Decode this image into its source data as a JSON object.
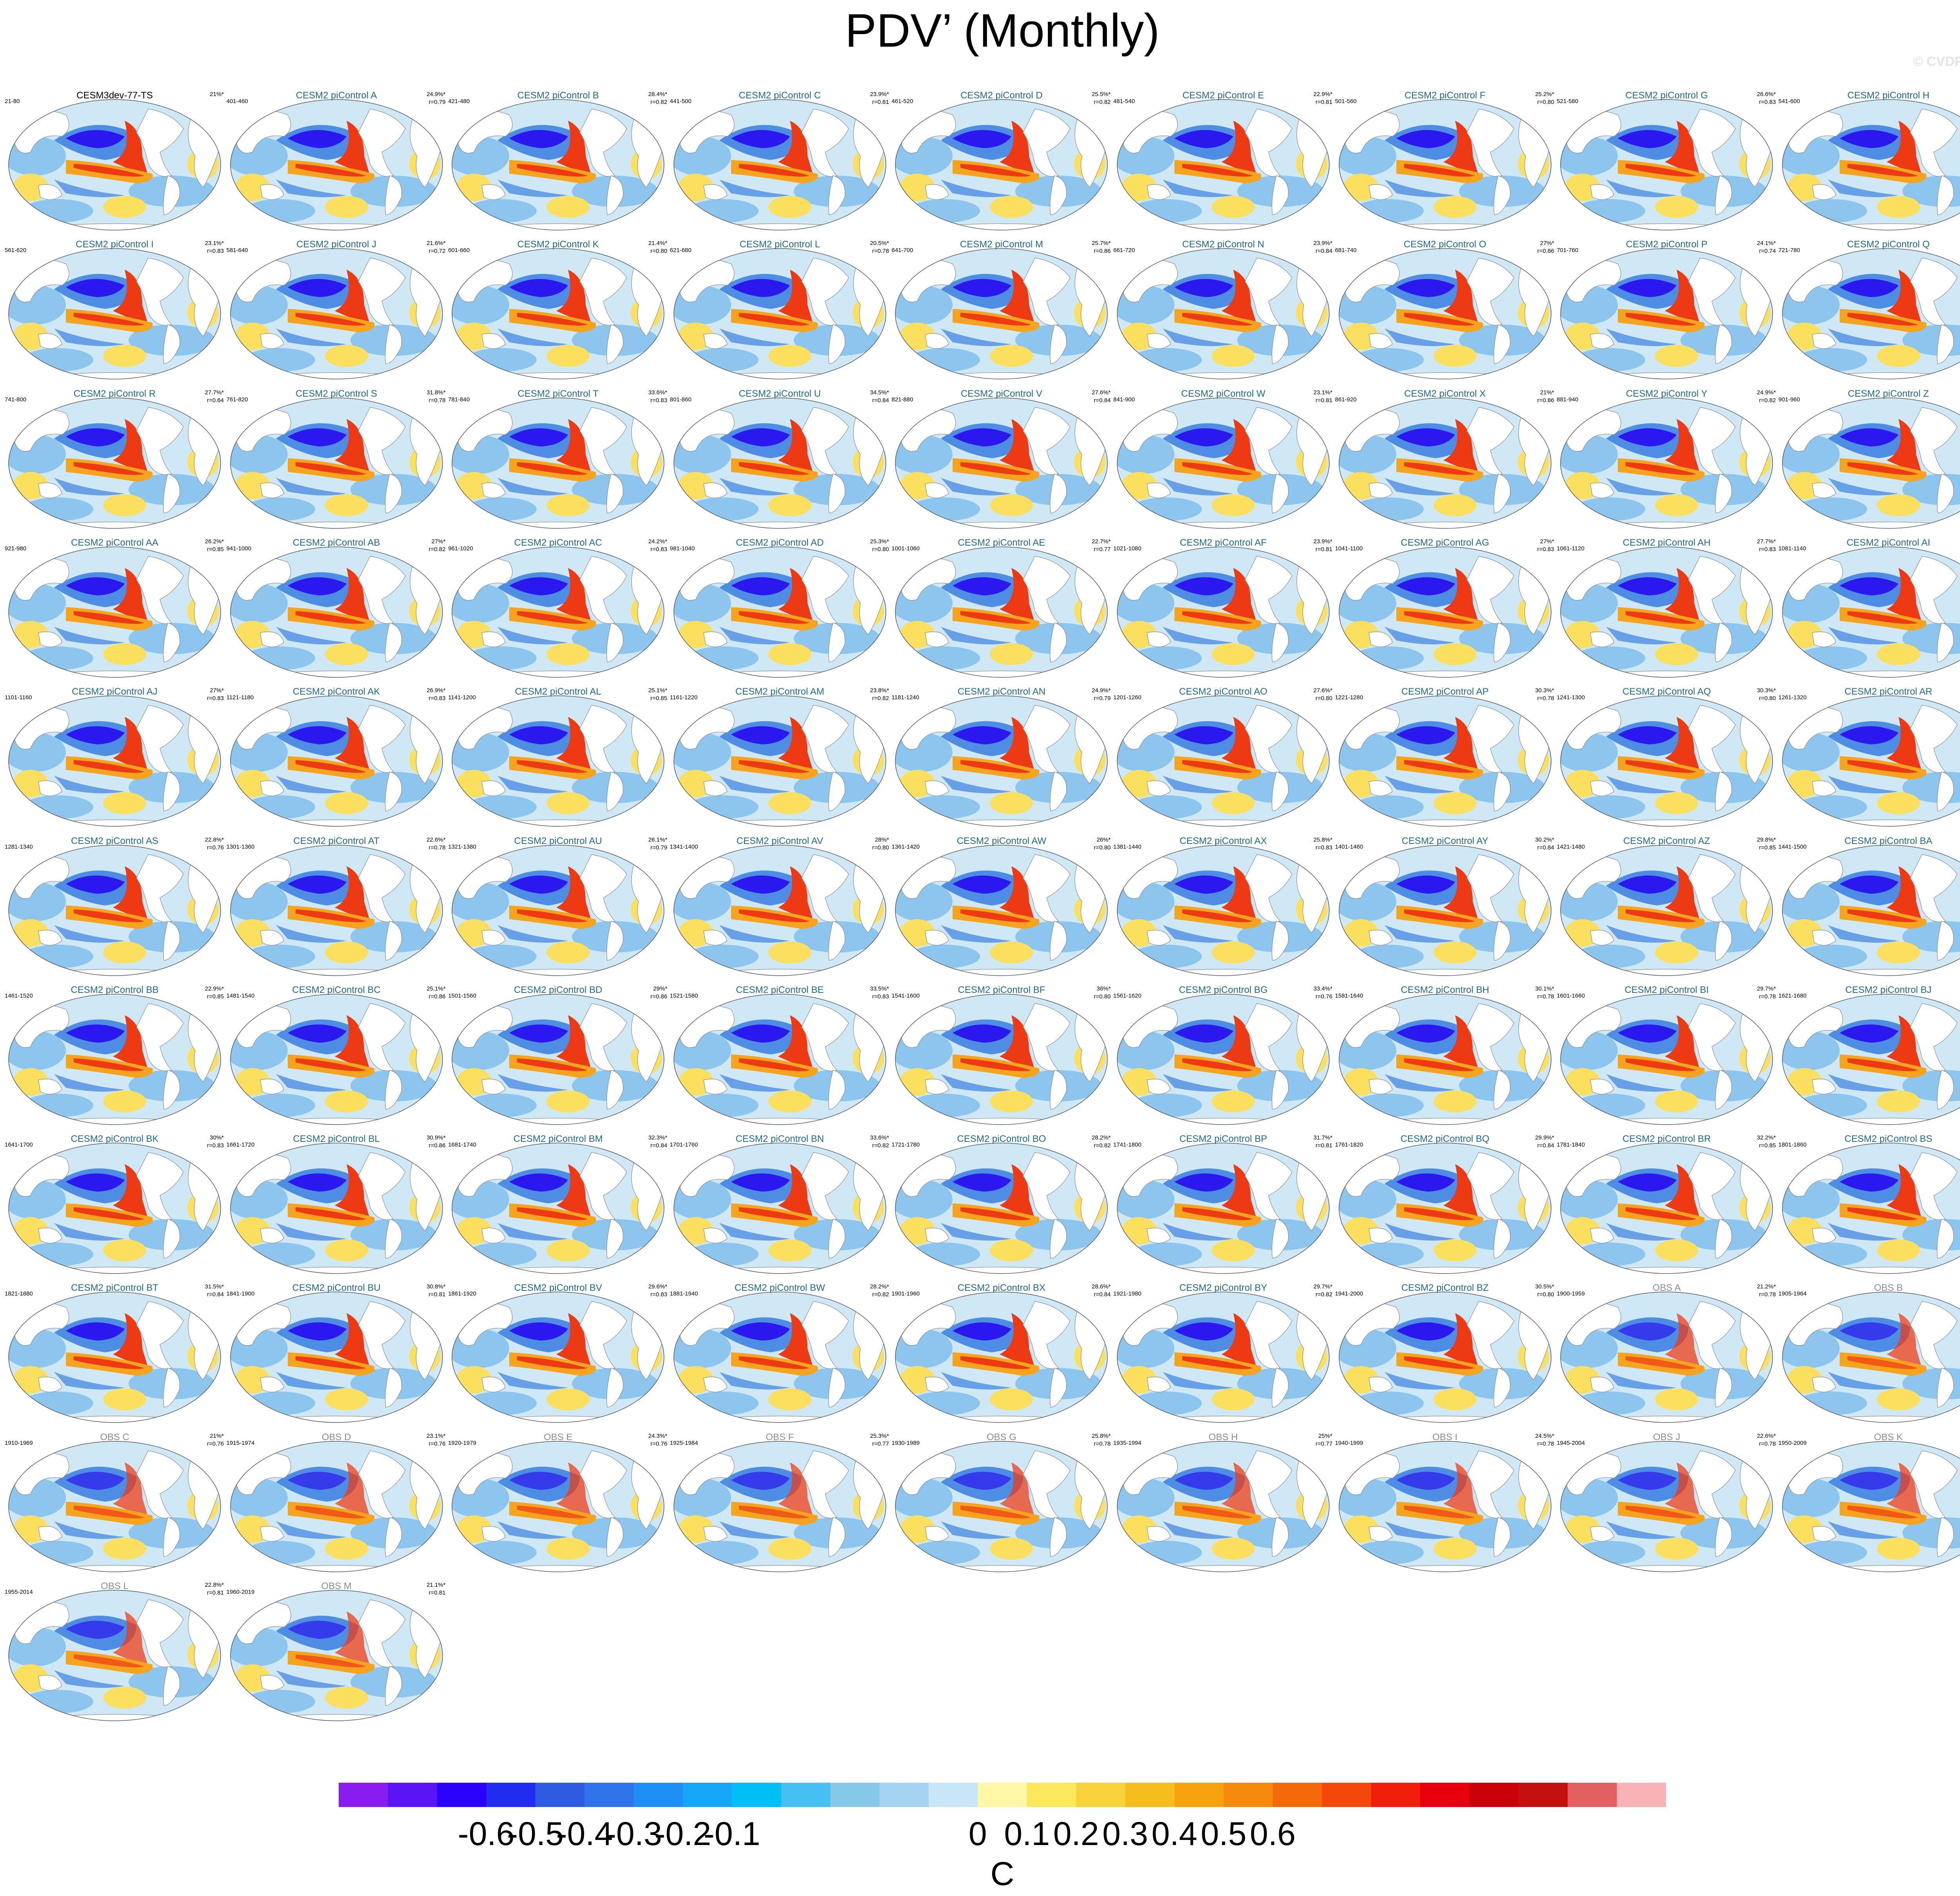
{
  "title": "PDV’ (Monthly)",
  "copyright": "© CVDP-LE",
  "panels": [
    {
      "title": "CESM3dev-77-TS",
      "years": "21-80",
      "pct": "21%*",
      "r": "",
      "kind": "ctl"
    },
    {
      "title": "CESM2 piControl A",
      "years": "401-460",
      "pct": "24.9%*",
      "r": "r=0.79",
      "kind": "mod"
    },
    {
      "title": "CESM2 piControl B",
      "years": "421-480",
      "pct": "28.4%*",
      "r": "r=0.82",
      "kind": "mod"
    },
    {
      "title": "CESM2 piControl C",
      "years": "441-500",
      "pct": "23.9%*",
      "r": "r=0.81",
      "kind": "mod"
    },
    {
      "title": "CESM2 piControl D",
      "years": "461-520",
      "pct": "25.5%*",
      "r": "r=0.82",
      "kind": "mod"
    },
    {
      "title": "CESM2 piControl E",
      "years": "481-540",
      "pct": "22.9%*",
      "r": "r=0.81",
      "kind": "mod"
    },
    {
      "title": "CESM2 piControl F",
      "years": "501-560",
      "pct": "25.2%*",
      "r": "r=0.80",
      "kind": "mod"
    },
    {
      "title": "CESM2 piControl G",
      "years": "521-580",
      "pct": "26.6%*",
      "r": "r=0.83",
      "kind": "mod"
    },
    {
      "title": "CESM2 piControl H",
      "years": "541-600",
      "pct": "23.5%*",
      "r": "r=0.81",
      "kind": "mod"
    },
    {
      "title": "CESM2 piControl I",
      "years": "561-620",
      "pct": "23.1%*",
      "r": "r=0.83",
      "kind": "mod"
    },
    {
      "title": "CESM2 piControl J",
      "years": "581-640",
      "pct": "21.6%*",
      "r": "r=0.72",
      "kind": "mod"
    },
    {
      "title": "CESM2 piControl K",
      "years": "601-660",
      "pct": "21.4%*",
      "r": "r=0.80",
      "kind": "mod"
    },
    {
      "title": "CESM2 piControl L",
      "years": "621-680",
      "pct": "20.5%*",
      "r": "r=0.78",
      "kind": "mod"
    },
    {
      "title": "CESM2 piControl M",
      "years": "641-700",
      "pct": "25.7%*",
      "r": "r=0.86",
      "kind": "mod"
    },
    {
      "title": "CESM2 piControl N",
      "years": "661-720",
      "pct": "23.9%*",
      "r": "r=0.84",
      "kind": "mod"
    },
    {
      "title": "CESM2 piControl O",
      "years": "681-740",
      "pct": "27%*",
      "r": "r=0.86",
      "kind": "mod"
    },
    {
      "title": "CESM2 piControl P",
      "years": "701-760",
      "pct": "24.1%*",
      "r": "r=0.74",
      "kind": "mod"
    },
    {
      "title": "CESM2 piControl Q",
      "years": "721-780",
      "pct": "28.4%*",
      "r": "r=0.71",
      "kind": "mod"
    },
    {
      "title": "CESM2 piControl R",
      "years": "741-800",
      "pct": "27.7%*",
      "r": "r=0.64",
      "kind": "mod"
    },
    {
      "title": "CESM2 piControl S",
      "years": "761-820",
      "pct": "31.8%*",
      "r": "r=0.78",
      "kind": "mod"
    },
    {
      "title": "CESM2 piControl T",
      "years": "781-840",
      "pct": "33.6%*",
      "r": "r=0.83",
      "kind": "mod"
    },
    {
      "title": "CESM2 piControl U",
      "years": "801-860",
      "pct": "34.5%*",
      "r": "r=0.84",
      "kind": "mod"
    },
    {
      "title": "CESM2 piControl V",
      "years": "821-880",
      "pct": "27.6%*",
      "r": "r=0.84",
      "kind": "mod"
    },
    {
      "title": "CESM2 piControl W",
      "years": "841-900",
      "pct": "23.1%*",
      "r": "r=0.81",
      "kind": "mod"
    },
    {
      "title": "CESM2 piControl X",
      "years": "861-920",
      "pct": "21%*",
      "r": "r=0.86",
      "kind": "mod"
    },
    {
      "title": "CESM2 piControl Y",
      "years": "881-940",
      "pct": "24.9%*",
      "r": "r=0.82",
      "kind": "mod"
    },
    {
      "title": "CESM2 piControl Z",
      "years": "901-960",
      "pct": "24.8%*",
      "r": "r=0.85",
      "kind": "mod"
    },
    {
      "title": "CESM2 piControl AA",
      "years": "921-980",
      "pct": "26.2%*",
      "r": "r=0.85",
      "kind": "mod"
    },
    {
      "title": "CESM2 piControl AB",
      "years": "941-1000",
      "pct": "27%*",
      "r": "r=0.82",
      "kind": "mod"
    },
    {
      "title": "CESM2 piControl AC",
      "years": "961-1020",
      "pct": "24.2%*",
      "r": "r=0.83",
      "kind": "mod"
    },
    {
      "title": "CESM2 piControl AD",
      "years": "981-1040",
      "pct": "25.3%*",
      "r": "r=0.80",
      "kind": "mod"
    },
    {
      "title": "CESM2 piControl AE",
      "years": "1001-1060",
      "pct": "22.7%*",
      "r": "r=0.77",
      "kind": "mod"
    },
    {
      "title": "CESM2 piControl AF",
      "years": "1021-1080",
      "pct": "23.9%*",
      "r": "r=0.81",
      "kind": "mod"
    },
    {
      "title": "CESM2 piControl AG",
      "years": "1041-1100",
      "pct": "27%*",
      "r": "r=0.83",
      "kind": "mod"
    },
    {
      "title": "CESM2 piControl AH",
      "years": "1061-1120",
      "pct": "27.7%*",
      "r": "r=0.83",
      "kind": "mod"
    },
    {
      "title": "CESM2 piControl AI",
      "years": "1081-1140",
      "pct": "26.9%*",
      "r": "r=0.79",
      "kind": "mod"
    },
    {
      "title": "CESM2 piControl AJ",
      "years": "1101-1160",
      "pct": "27%*",
      "r": "r=0.83",
      "kind": "mod"
    },
    {
      "title": "CESM2 piControl AK",
      "years": "1121-1180",
      "pct": "26.9%*",
      "r": "r=0.83",
      "kind": "mod"
    },
    {
      "title": "CESM2 piControl AL",
      "years": "1141-1200",
      "pct": "25.1%*",
      "r": "r=0.85",
      "kind": "mod"
    },
    {
      "title": "CESM2 piControl AM",
      "years": "1161-1220",
      "pct": "23.8%*",
      "r": "r=0.82",
      "kind": "mod"
    },
    {
      "title": "CESM2 piControl AN",
      "years": "1181-1240",
      "pct": "24.9%*",
      "r": "r=0.79",
      "kind": "mod"
    },
    {
      "title": "CESM2 piControl AO",
      "years": "1201-1260",
      "pct": "27.6%*",
      "r": "r=0.80",
      "kind": "mod"
    },
    {
      "title": "CESM2 piControl AP",
      "years": "1221-1280",
      "pct": "30.3%*",
      "r": "r=0.78",
      "kind": "mod"
    },
    {
      "title": "CESM2 piControl AQ",
      "years": "1241-1300",
      "pct": "30.3%*",
      "r": "r=0.80",
      "kind": "mod"
    },
    {
      "title": "CESM2 piControl AR",
      "years": "1261-1320",
      "pct": "25%*",
      "r": "r=0.78",
      "kind": "mod"
    },
    {
      "title": "CESM2 piControl AS",
      "years": "1281-1340",
      "pct": "22.8%*",
      "r": "r=0.76",
      "kind": "mod"
    },
    {
      "title": "CESM2 piControl AT",
      "years": "1301-1360",
      "pct": "22.6%*",
      "r": "r=0.78",
      "kind": "mod"
    },
    {
      "title": "CESM2 piControl AU",
      "years": "1321-1380",
      "pct": "26.1%*",
      "r": "r=0.79",
      "kind": "mod"
    },
    {
      "title": "CESM2 piControl AV",
      "years": "1341-1400",
      "pct": "28%*",
      "r": "r=0.80",
      "kind": "mod"
    },
    {
      "title": "CESM2 piControl AW",
      "years": "1361-1420",
      "pct": "26%*",
      "r": "r=0.80",
      "kind": "mod"
    },
    {
      "title": "CESM2 piControl AX",
      "years": "1381-1440",
      "pct": "25.8%*",
      "r": "r=0.83",
      "kind": "mod"
    },
    {
      "title": "CESM2 piControl AY",
      "years": "1401-1460",
      "pct": "30.2%*",
      "r": "r=0.84",
      "kind": "mod"
    },
    {
      "title": "CESM2 piControl AZ",
      "years": "1421-1480",
      "pct": "29.8%*",
      "r": "r=0.85",
      "kind": "mod"
    },
    {
      "title": "CESM2 piControl BA",
      "years": "1441-1500",
      "pct": "28.5%*",
      "r": "r=0.85",
      "kind": "mod"
    },
    {
      "title": "CESM2 piControl BB",
      "years": "1461-1520",
      "pct": "22.9%*",
      "r": "r=0.85",
      "kind": "mod"
    },
    {
      "title": "CESM2 piControl BC",
      "years": "1481-1540",
      "pct": "25.1%*",
      "r": "r=0.86",
      "kind": "mod"
    },
    {
      "title": "CESM2 piControl BD",
      "years": "1501-1560",
      "pct": "29%*",
      "r": "r=0.86",
      "kind": "mod"
    },
    {
      "title": "CESM2 piControl BE",
      "years": "1521-1580",
      "pct": "33.5%*",
      "r": "r=0.83",
      "kind": "mod"
    },
    {
      "title": "CESM2 piControl BF",
      "years": "1541-1600",
      "pct": "36%*",
      "r": "r=0.80",
      "kind": "mod"
    },
    {
      "title": "CESM2 piControl BG",
      "years": "1561-1620",
      "pct": "33.4%*",
      "r": "r=0.76",
      "kind": "mod"
    },
    {
      "title": "CESM2 piControl BH",
      "years": "1581-1640",
      "pct": "30.1%*",
      "r": "r=0.78",
      "kind": "mod"
    },
    {
      "title": "CESM2 piControl BI",
      "years": "1601-1660",
      "pct": "29.7%*",
      "r": "r=0.78",
      "kind": "mod"
    },
    {
      "title": "CESM2 piControl BJ",
      "years": "1621-1680",
      "pct": "29.9%*",
      "r": "r=0.83",
      "kind": "mod"
    },
    {
      "title": "CESM2 piControl BK",
      "years": "1641-1700",
      "pct": "30%*",
      "r": "r=0.83",
      "kind": "mod"
    },
    {
      "title": "CESM2 piControl BL",
      "years": "1661-1720",
      "pct": "30.9%*",
      "r": "r=0.86",
      "kind": "mod"
    },
    {
      "title": "CESM2 piControl BM",
      "years": "1681-1740",
      "pct": "32.3%*",
      "r": "r=0.84",
      "kind": "mod"
    },
    {
      "title": "CESM2 piControl BN",
      "years": "1701-1760",
      "pct": "33.6%*",
      "r": "r=0.82",
      "kind": "mod"
    },
    {
      "title": "CESM2 piControl BO",
      "years": "1721-1780",
      "pct": "28.2%*",
      "r": "r=0.82",
      "kind": "mod"
    },
    {
      "title": "CESM2 piControl BP",
      "years": "1741-1800",
      "pct": "31.7%*",
      "r": "r=0.81",
      "kind": "mod"
    },
    {
      "title": "CESM2 piControl BQ",
      "years": "1761-1820",
      "pct": "29.9%*",
      "r": "r=0.84",
      "kind": "mod"
    },
    {
      "title": "CESM2 piControl BR",
      "years": "1781-1840",
      "pct": "32.2%*",
      "r": "r=0.85",
      "kind": "mod"
    },
    {
      "title": "CESM2 piControl BS",
      "years": "1801-1860",
      "pct": "30.9%*",
      "r": "r=0.84",
      "kind": "mod"
    },
    {
      "title": "CESM2 piControl BT",
      "years": "1821-1880",
      "pct": "31.5%*",
      "r": "r=0.84",
      "kind": "mod"
    },
    {
      "title": "CESM2 piControl BU",
      "years": "1841-1900",
      "pct": "30.8%*",
      "r": "r=0.81",
      "kind": "mod"
    },
    {
      "title": "CESM2 piControl BV",
      "years": "1861-1920",
      "pct": "29.6%*",
      "r": "r=0.83",
      "kind": "mod"
    },
    {
      "title": "CESM2 piControl BW",
      "years": "1881-1940",
      "pct": "28.2%*",
      "r": "r=0.82",
      "kind": "mod"
    },
    {
      "title": "CESM2 piControl BX",
      "years": "1901-1960",
      "pct": "28.6%*",
      "r": "r=0.84",
      "kind": "mod"
    },
    {
      "title": "CESM2 piControl BY",
      "years": "1921-1980",
      "pct": "29.7%*",
      "r": "r=0.82",
      "kind": "mod"
    },
    {
      "title": "CESM2 piControl BZ",
      "years": "1941-2000",
      "pct": "30.5%*",
      "r": "r=0.80",
      "kind": "mod"
    },
    {
      "title": "OBS A",
      "years": "1900-1959",
      "pct": "21.2%*",
      "r": "r=0.78",
      "kind": "obs"
    },
    {
      "title": "OBS B",
      "years": "1905-1964",
      "pct": "20.7%*",
      "r": "r=0.78",
      "kind": "obs"
    },
    {
      "title": "OBS C",
      "years": "1910-1969",
      "pct": "21%*",
      "r": "r=0.76",
      "kind": "obs"
    },
    {
      "title": "OBS D",
      "years": "1915-1974",
      "pct": "23.1%*",
      "r": "r=0.76",
      "kind": "obs"
    },
    {
      "title": "OBS E",
      "years": "1920-1979",
      "pct": "24.3%*",
      "r": "r=0.76",
      "kind": "obs"
    },
    {
      "title": "OBS F",
      "years": "1925-1984",
      "pct": "25.3%*",
      "r": "r=0.77",
      "kind": "obs"
    },
    {
      "title": "OBS G",
      "years": "1930-1989",
      "pct": "25.8%*",
      "r": "r=0.78",
      "kind": "obs"
    },
    {
      "title": "OBS H",
      "years": "1935-1994",
      "pct": "25%*",
      "r": "r=0.77",
      "kind": "obs"
    },
    {
      "title": "OBS I",
      "years": "1940-1999",
      "pct": "24.5%*",
      "r": "r=0.78",
      "kind": "obs"
    },
    {
      "title": "OBS J",
      "years": "1945-2004",
      "pct": "22.6%*",
      "r": "r=0.78",
      "kind": "obs"
    },
    {
      "title": "OBS K",
      "years": "1950-2009",
      "pct": "23.2%*",
      "r": "r=0.80",
      "kind": "obs"
    },
    {
      "title": "OBS L",
      "years": "1955-2014",
      "pct": "22.8%*",
      "r": "r=0.81",
      "kind": "obs"
    },
    {
      "title": "OBS M",
      "years": "1960-2019",
      "pct": "21.1%*",
      "r": "r=0.81",
      "kind": "obs"
    }
  ],
  "colorbar": {
    "units": "C",
    "labels": [
      "-0.6",
      "-0.5",
      "-0.4",
      "-0.3",
      "-0.2",
      "-0.1",
      "0",
      "0.1",
      "0.2",
      "0.3",
      "0.4",
      "0.5",
      "0.6"
    ],
    "colors": [
      "#8a1cf0",
      "#5a14f5",
      "#2a00ff",
      "#1e2df0",
      "#2e5be0",
      "#2f74ea",
      "#1e8ff5",
      "#16a6f7",
      "#00bff5",
      "#46bff2",
      "#86c8e8",
      "#a6d3f0",
      "#c8e6f5",
      "#fdf7a6",
      "#fbe85c",
      "#f8d23a",
      "#f6bd1e",
      "#f7a30f",
      "#f68a0c",
      "#f46a0a",
      "#f3480a",
      "#f11e0a",
      "#e7000b",
      "#cc0008",
      "#c51010",
      "#e36060",
      "#f9b3b6"
    ]
  },
  "map_colors": {
    "ocean_neutral": "#cfe8f6",
    "cool": "#8cc6ee",
    "cold": "#4d8de3",
    "very_cold": "#2b18ee",
    "warm": "#fbe060",
    "warmer": "#f6a31e",
    "hot": "#ee3a12",
    "land": "#ffffff",
    "coast": "#8a8a8a"
  }
}
